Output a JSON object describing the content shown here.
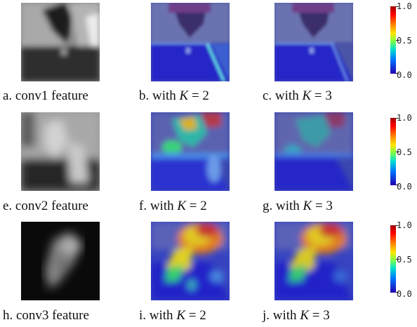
{
  "colorbar": {
    "ticks": [
      "1.0",
      "0.5",
      "0.0"
    ]
  },
  "rows": [
    {
      "panels": [
        {
          "type": "grayscale-feature",
          "label": "a. conv1 feature",
          "caption_prefix": "a. conv1 feature",
          "caption_math_lhs": "",
          "caption_math_rhs": ""
        },
        {
          "type": "attention-overlay",
          "caption_prefix": "b. with",
          "caption_math_lhs": "K",
          "caption_math_rhs": "= 2"
        },
        {
          "type": "attention-overlay",
          "caption_prefix": "c. with",
          "caption_math_lhs": "K",
          "caption_math_rhs": "= 3"
        }
      ]
    },
    {
      "panels": [
        {
          "type": "grayscale-feature",
          "caption_prefix": "e. conv2 feature",
          "caption_math_lhs": "",
          "caption_math_rhs": ""
        },
        {
          "type": "attention-overlay",
          "caption_prefix": "f. with",
          "caption_math_lhs": "K",
          "caption_math_rhs": "= 2"
        },
        {
          "type": "attention-overlay",
          "caption_prefix": "g. with",
          "caption_math_lhs": "K",
          "caption_math_rhs": "= 3"
        }
      ]
    },
    {
      "panels": [
        {
          "type": "grayscale-feature",
          "caption_prefix": "h. conv3 feature",
          "caption_math_lhs": "",
          "caption_math_rhs": ""
        },
        {
          "type": "attention-overlay",
          "caption_prefix": "i. with",
          "caption_math_lhs": "K",
          "caption_math_rhs": "= 2"
        },
        {
          "type": "attention-overlay",
          "caption_prefix": "j. with",
          "caption_math_lhs": "K",
          "caption_math_rhs": "= 3"
        }
      ]
    }
  ]
}
